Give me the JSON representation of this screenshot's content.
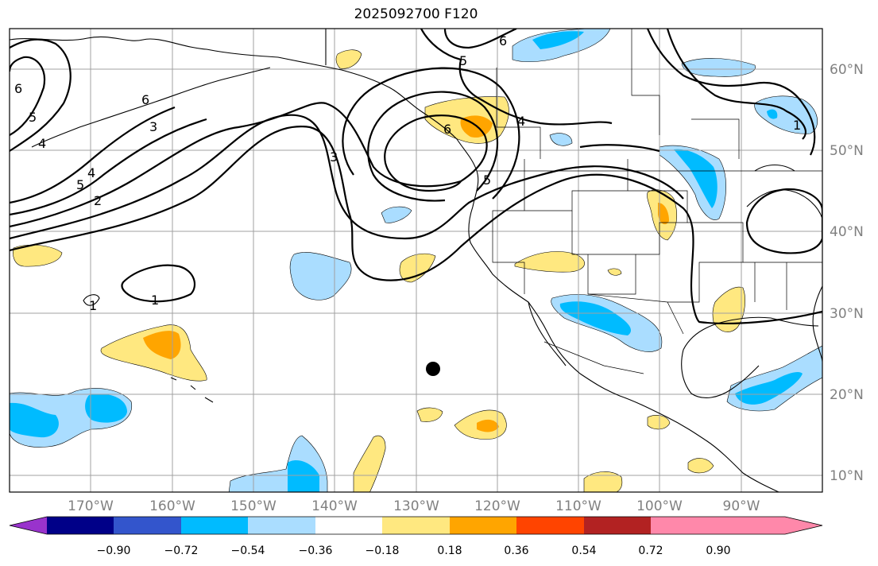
{
  "title": "2025092700 F120",
  "longitude_labels": [
    "170°W",
    "160°W",
    "150°W",
    "140°W",
    "130°W",
    "120°W",
    "110°W",
    "100°W",
    "90°W"
  ],
  "latitude_labels": [
    "60°N",
    "50°N",
    "40°N",
    "30°N",
    "20°N",
    "10°N"
  ],
  "colorbar": {
    "ticks": [
      "−0.90",
      "−0.72",
      "−0.54",
      "−0.36",
      "−0.18",
      "0.18",
      "0.36",
      "0.54",
      "0.72",
      "0.90"
    ],
    "colors": [
      "#9933cc",
      "#000088",
      "#3355cc",
      "#00bbff",
      "#aaddff",
      "#ffffff",
      "#ffe880",
      "#ffa500",
      "#ff4400",
      "#b22222",
      "#ff88aa"
    ]
  },
  "contour_labels": [
    "6",
    "5",
    "4",
    "5",
    "6",
    "4",
    "3",
    "2",
    "1",
    "3",
    "5",
    "6",
    "6",
    "5",
    "4",
    "1",
    "1"
  ],
  "marker": {
    "label": "point-marker",
    "lon": -128.5,
    "lat": 23.0,
    "color": "#000000"
  }
}
